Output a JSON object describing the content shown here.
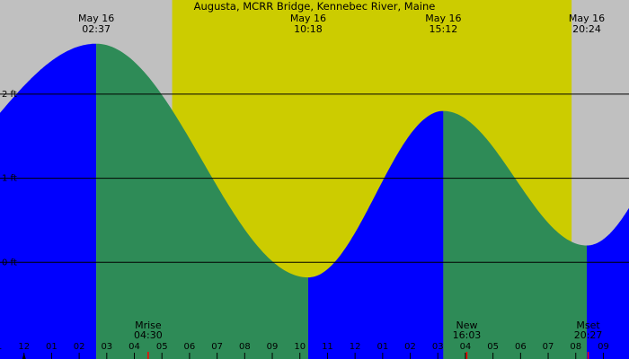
{
  "chart_data": {
    "type": "area",
    "title": "Augusta, MCRR Bridge, Kennebec River, Maine",
    "ylabel": "",
    "xlabel": "",
    "x_unit": "hours (local time, May 16)",
    "xlim": [
      -0.87,
      21.93
    ],
    "ylim": [
      -1.15,
      3.12
    ],
    "y_ticks": [
      {
        "label": "0 ft",
        "value": 0
      },
      {
        "label": "1 ft",
        "value": 1
      },
      {
        "label": "2 ft",
        "value": 2
      }
    ],
    "grid": true,
    "tide_extremes": [
      {
        "date": "May 16",
        "time": "02:37",
        "hour": 2.62,
        "height": 2.6,
        "kind": "high"
      },
      {
        "date": "May 16",
        "time": "10:18",
        "hour": 10.3,
        "height": -0.18,
        "kind": "low"
      },
      {
        "date": "May 16",
        "time": "15:12",
        "hour": 15.2,
        "height": 1.8,
        "kind": "high"
      },
      {
        "date": "May 16",
        "time": "20:24",
        "hour": 20.4,
        "height": 0.2,
        "kind": "low"
      }
    ],
    "series": [
      {
        "name": "",
        "color": "#0000ff",
        "x": [
          -0.87,
          2.62
        ],
        "tide": "rising"
      },
      {
        "name": "",
        "color": "#2e8b57",
        "x": [
          2.62,
          10.3
        ],
        "tide": "falling"
      },
      {
        "name": "",
        "color": "#0000ff",
        "x": [
          10.3,
          15.2
        ],
        "tide": "rising"
      },
      {
        "name": "",
        "color": "#2e8b57",
        "x": [
          15.2,
          20.4
        ],
        "tide": "falling"
      },
      {
        "name": "",
        "color": "#0000ff",
        "x": [
          20.4,
          21.93
        ],
        "tide": "rising"
      }
    ],
    "daylight": {
      "start": 5.37,
      "end": 19.85,
      "color": "#cccc00"
    },
    "night_color": "#c0c0c0",
    "x_ticks": [
      {
        "label": "01",
        "hour": -1
      },
      {
        "label": "12",
        "hour": 0
      },
      {
        "label": "01",
        "hour": 1
      },
      {
        "label": "02",
        "hour": 2
      },
      {
        "label": "03",
        "hour": 3
      },
      {
        "label": "04",
        "hour": 4
      },
      {
        "label": "05",
        "hour": 5
      },
      {
        "label": "06",
        "hour": 6
      },
      {
        "label": "07",
        "hour": 7
      },
      {
        "label": "08",
        "hour": 8
      },
      {
        "label": "09",
        "hour": 9
      },
      {
        "label": "10",
        "hour": 10
      },
      {
        "label": "11",
        "hour": 11
      },
      {
        "label": "12",
        "hour": 12
      },
      {
        "label": "01",
        "hour": 13
      },
      {
        "label": "02",
        "hour": 14
      },
      {
        "label": "03",
        "hour": 15
      },
      {
        "label": "04",
        "hour": 16
      },
      {
        "label": "05",
        "hour": 17
      },
      {
        "label": "06",
        "hour": 18
      },
      {
        "label": "07",
        "hour": 19
      },
      {
        "label": "08",
        "hour": 20
      },
      {
        "label": "09",
        "hour": 21
      }
    ],
    "events": [
      {
        "name": "Mrise",
        "time": "04:30",
        "hour": 4.5
      },
      {
        "name": "New",
        "time": "16:03",
        "hour": 16.05
      },
      {
        "name": "Mset",
        "time": "20:27",
        "hour": 20.45
      }
    ],
    "event_marker_color": "#ff0000",
    "midnight_marker_hour": 0
  }
}
